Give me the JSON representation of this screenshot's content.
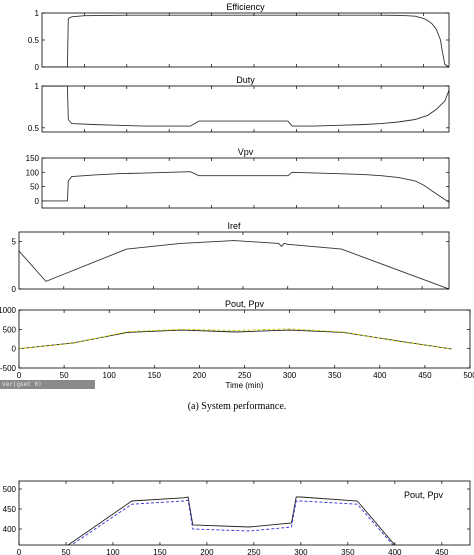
{
  "caption": "(a) System performance.",
  "status_text": "ver(gset 0)",
  "chart_data": [
    {
      "type": "line",
      "title": "Efficiency",
      "xlim": [
        0,
        480
      ],
      "ylim": [
        0,
        1
      ],
      "yticks": [
        0,
        0.5,
        1
      ],
      "series": [
        {
          "color": "#333333",
          "x": [
            0,
            30,
            31,
            35,
            50,
            100,
            200,
            300,
            400,
            420,
            430,
            440,
            445,
            450,
            455,
            460,
            465,
            470,
            472,
            475,
            480
          ],
          "y": [
            0,
            0,
            0.9,
            0.93,
            0.95,
            0.96,
            0.96,
            0.96,
            0.96,
            0.955,
            0.95,
            0.94,
            0.92,
            0.9,
            0.86,
            0.8,
            0.7,
            0.5,
            0.3,
            0.05,
            0
          ]
        }
      ]
    },
    {
      "type": "line",
      "title": "Duty",
      "xlim": [
        0,
        480
      ],
      "ylim": [
        0.45,
        1
      ],
      "yticks": [
        0.5,
        1
      ],
      "series": [
        {
          "color": "#333333",
          "x": [
            0,
            30,
            31,
            35,
            60,
            90,
            120,
            150,
            175,
            185,
            200,
            250,
            290,
            295,
            320,
            350,
            380,
            400,
            420,
            440,
            455,
            465,
            475,
            480
          ],
          "y": [
            1,
            1,
            0.6,
            0.55,
            0.54,
            0.53,
            0.52,
            0.52,
            0.52,
            0.58,
            0.58,
            0.58,
            0.58,
            0.52,
            0.52,
            0.53,
            0.54,
            0.55,
            0.57,
            0.6,
            0.65,
            0.72,
            0.82,
            0.95
          ]
        }
      ]
    },
    {
      "type": "line",
      "title": "Vpv",
      "xlim": [
        0,
        480
      ],
      "ylim": [
        -25,
        150
      ],
      "yticks": [
        -50,
        0,
        50,
        100,
        150
      ],
      "ytick_labels_shown": [
        0,
        50,
        100,
        150
      ],
      "series": [
        {
          "color": "#333333",
          "x": [
            0,
            30,
            31,
            35,
            60,
            90,
            120,
            150,
            175,
            185,
            200,
            250,
            290,
            295,
            320,
            350,
            380,
            400,
            420,
            440,
            450,
            460,
            470,
            480
          ],
          "y": [
            0,
            0,
            70,
            85,
            90,
            95,
            97,
            100,
            102,
            88,
            88,
            88,
            88,
            100,
            98,
            95,
            92,
            88,
            82,
            70,
            55,
            35,
            15,
            -5
          ]
        }
      ]
    },
    {
      "type": "line",
      "title": "Iref",
      "xlim": [
        0,
        480
      ],
      "ylim": [
        0,
        6
      ],
      "yticks": [
        0,
        5
      ],
      "series": [
        {
          "color": "#333333",
          "x": [
            0,
            30,
            120,
            180,
            240,
            290,
            293,
            296,
            300,
            360,
            480
          ],
          "y": [
            4,
            0.8,
            4.2,
            4.8,
            5.1,
            4.8,
            4.5,
            4.8,
            4.7,
            4.2,
            0
          ]
        }
      ]
    },
    {
      "type": "line",
      "title": "Pout, Ppv",
      "xlabel": "Time (min)",
      "xlim": [
        0,
        500
      ],
      "ylim": [
        -500,
        1000
      ],
      "xticks": [
        0,
        50,
        100,
        150,
        200,
        250,
        300,
        350,
        400,
        450,
        500
      ],
      "yticks": [
        -500,
        0,
        500,
        1000
      ],
      "series": [
        {
          "color": "#222222",
          "x": [
            0,
            60,
            120,
            180,
            240,
            300,
            360,
            420,
            480
          ],
          "y": [
            0,
            150,
            420,
            480,
            430,
            480,
            420,
            200,
            -10
          ]
        },
        {
          "color": "#c8c800",
          "dash": true,
          "x": [
            0,
            60,
            120,
            180,
            240,
            300,
            360,
            420,
            480
          ],
          "y": [
            0,
            140,
            440,
            500,
            470,
            510,
            430,
            190,
            -10
          ]
        }
      ]
    },
    {
      "type": "line",
      "title": "Pout, Ppv",
      "legend_label_position": "top-right",
      "xlim": [
        0,
        480
      ],
      "ylim": [
        360,
        520
      ],
      "xticks": [
        0,
        50,
        100,
        150,
        200,
        250,
        300,
        350,
        400,
        450
      ],
      "xtick_labels_shown": [
        0,
        50,
        100,
        150,
        200,
        250,
        300,
        350,
        400,
        450
      ],
      "yticks": [
        400,
        450,
        500
      ],
      "series": [
        {
          "color": "#222222",
          "x": [
            40,
            120,
            175,
            180,
            185,
            245,
            290,
            295,
            300,
            360,
            400
          ],
          "y": [
            340,
            470,
            478,
            480,
            410,
            405,
            415,
            480,
            480,
            470,
            360
          ]
        },
        {
          "color": "#3030d8",
          "dash": true,
          "x": [
            40,
            120,
            175,
            180,
            185,
            245,
            290,
            295,
            300,
            360,
            400
          ],
          "y": [
            335,
            462,
            470,
            472,
            400,
            395,
            405,
            470,
            470,
            462,
            355
          ]
        }
      ]
    }
  ]
}
